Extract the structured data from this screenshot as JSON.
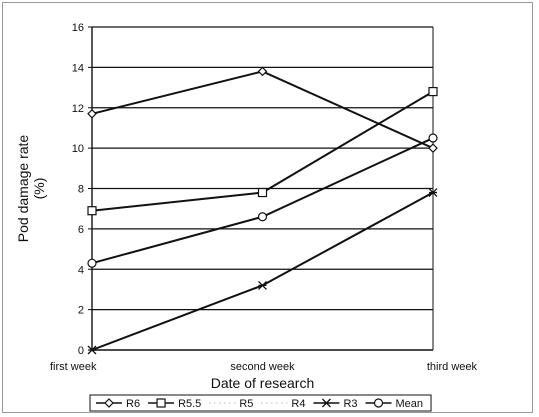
{
  "chart_data": {
    "type": "line",
    "title": "",
    "xlabel": "Date of research",
    "ylabel": "Pod damage rate (%)",
    "ylabel_lines": [
      "Pod damage rate",
      "(%)"
    ],
    "categories": [
      "first week",
      "second week",
      "third week"
    ],
    "ylim": [
      0,
      16
    ],
    "yticks": [
      0,
      2,
      4,
      6,
      8,
      10,
      12,
      14,
      16
    ],
    "grid": true,
    "legend_position": "bottom",
    "series": [
      {
        "name": "R6",
        "values": [
          11.7,
          13.8,
          10.0
        ],
        "marker": "diamond",
        "line": "solid"
      },
      {
        "name": "R5.5",
        "values": [
          6.9,
          7.8,
          12.8
        ],
        "marker": "square",
        "line": "solid"
      },
      {
        "name": "R5",
        "values": [
          null,
          null,
          null
        ],
        "marker": "none",
        "line": "dotted"
      },
      {
        "name": "R4",
        "values": [
          null,
          null,
          null
        ],
        "marker": "none",
        "line": "dotted"
      },
      {
        "name": "R3",
        "values": [
          0.0,
          3.2,
          7.8
        ],
        "marker": "star",
        "line": "solid"
      },
      {
        "name": "Mean",
        "values": [
          4.3,
          6.6,
          10.5
        ],
        "marker": "circle",
        "line": "solid"
      }
    ]
  }
}
